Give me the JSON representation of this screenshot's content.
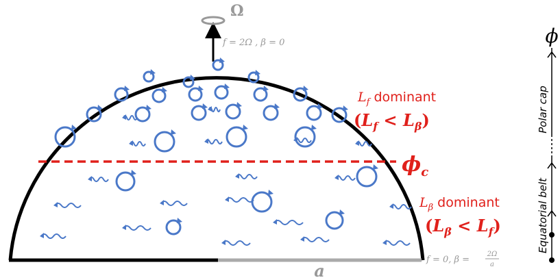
{
  "rotation": {
    "symbol": "Ω"
  },
  "pole_label": "f = 2Ω , β = 0",
  "upper_regime": {
    "letter": "L",
    "sub": "f",
    "rest": " dominant",
    "condition": {
      "open": "(",
      "l1": "L",
      "s1": "f",
      "op": " < ",
      "l2": "L",
      "s2": "β",
      "close": ")"
    }
  },
  "critical_latitude": {
    "symbol": "ϕ",
    "sub": "c"
  },
  "lower_regime": {
    "letter": "L",
    "sub": "β",
    "rest": " dominant",
    "condition": {
      "open": "(",
      "l1": "L",
      "s1": "β",
      "op": " < ",
      "l2": "L",
      "s2": "f",
      "close": ")"
    }
  },
  "equator_label": {
    "text": "f = 0, β = ",
    "numerator": "2Ω",
    "denominator": "a"
  },
  "radius_label": "a",
  "latitude_axis": {
    "symbol": "ϕ",
    "upper": "Polar cap",
    "lower": "Equatorial belt"
  }
}
